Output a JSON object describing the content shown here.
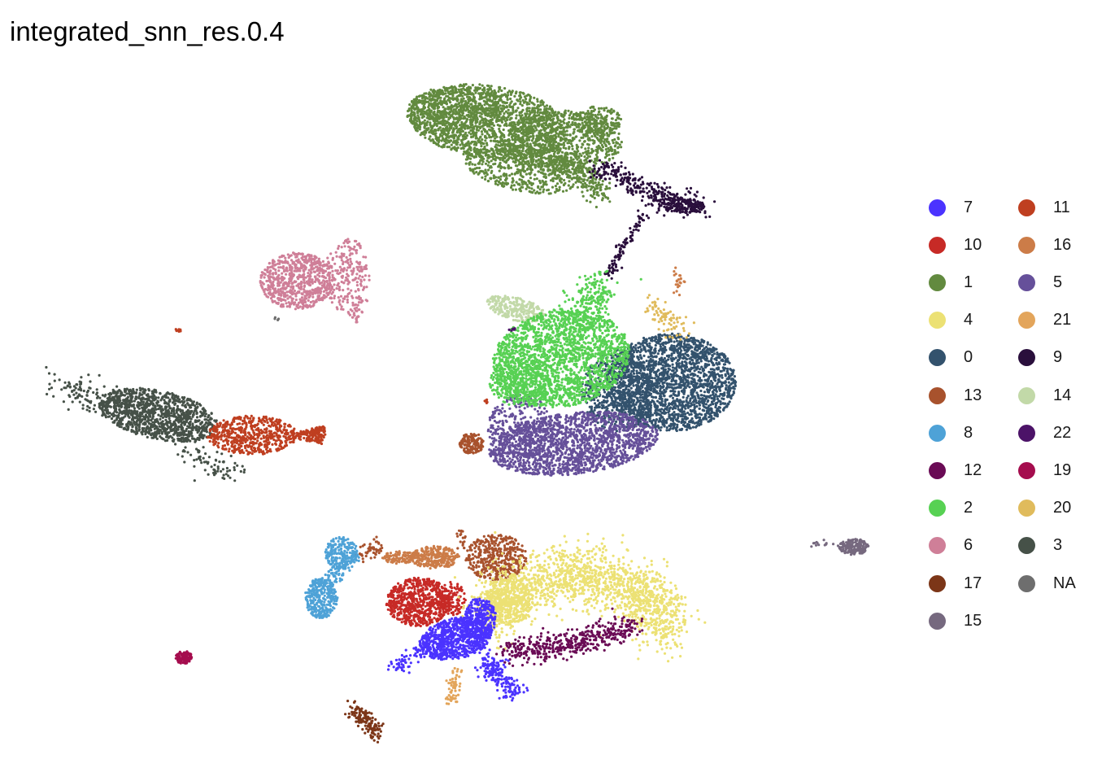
{
  "chart_data": {
    "type": "scatter",
    "title": "integrated_snn_res.0.4",
    "xlabel": "",
    "ylabel": "",
    "grid": false,
    "axes_visible": false,
    "legend_position": "right",
    "legend_columns": 2,
    "series": [
      {
        "name": "7",
        "color": "#4B33FF"
      },
      {
        "name": "10",
        "color": "#C72A26"
      },
      {
        "name": "1",
        "color": "#628A3F"
      },
      {
        "name": "4",
        "color": "#ECE174"
      },
      {
        "name": "0",
        "color": "#33526D"
      },
      {
        "name": "13",
        "color": "#A8522D"
      },
      {
        "name": "8",
        "color": "#4EA2D7"
      },
      {
        "name": "12",
        "color": "#6A0B55"
      },
      {
        "name": "2",
        "color": "#57D153"
      },
      {
        "name": "6",
        "color": "#CF7F98"
      },
      {
        "name": "17",
        "color": "#7C3618"
      },
      {
        "name": "15",
        "color": "#76697F"
      },
      {
        "name": "11",
        "color": "#BF3F20"
      },
      {
        "name": "16",
        "color": "#CC7C48"
      },
      {
        "name": "5",
        "color": "#66509A"
      },
      {
        "name": "21",
        "color": "#E3A55B"
      },
      {
        "name": "9",
        "color": "#2A0F3C"
      },
      {
        "name": "14",
        "color": "#C2D9A8"
      },
      {
        "name": "22",
        "color": "#4C1368"
      },
      {
        "name": "19",
        "color": "#A50D4E"
      },
      {
        "name": "20",
        "color": "#E0BB5C"
      },
      {
        "name": "3",
        "color": "#465148"
      },
      {
        "name": "NA",
        "color": "#6E6E6E"
      }
    ]
  }
}
